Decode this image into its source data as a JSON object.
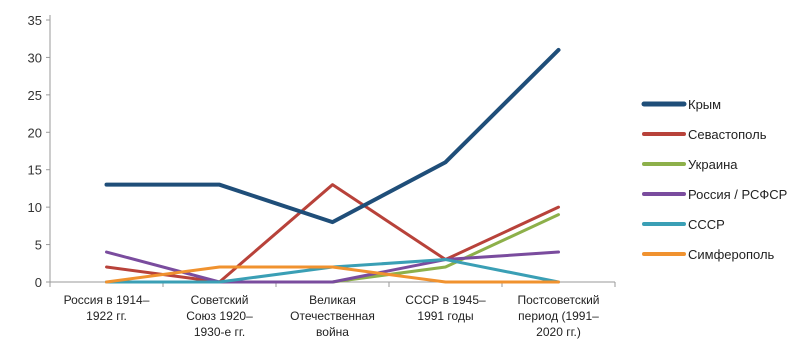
{
  "chart_data": {
    "type": "line",
    "categories": [
      [
        "Россия в 1914–",
        "1922 гг."
      ],
      [
        "Советский",
        "Союз 1920–",
        "1930-е гг."
      ],
      [
        "Великая",
        "Отечественная",
        "война"
      ],
      [
        "СССР в 1945–",
        "1991 годы"
      ],
      [
        "Постсоветский",
        "период (1991–",
        "2020 гг.)"
      ]
    ],
    "ylim": [
      0,
      35
    ],
    "yticks": [
      0,
      5,
      10,
      15,
      20,
      25,
      30,
      35
    ],
    "grid": false,
    "legend_position": "right",
    "series": [
      {
        "name": "Крым",
        "color": "#1F4E79",
        "width": 4,
        "values": [
          13,
          13,
          8,
          16,
          31
        ]
      },
      {
        "name": "Севастополь",
        "color": "#B8423A",
        "width": 3,
        "values": [
          2,
          0,
          13,
          3,
          10
        ]
      },
      {
        "name": "Украина",
        "color": "#8DB04A",
        "width": 3,
        "values": [
          0,
          0,
          0,
          2,
          9
        ]
      },
      {
        "name": "Россия / РСФСР",
        "color": "#7A4C9E",
        "width": 3,
        "values": [
          4,
          0,
          0,
          3,
          4
        ]
      },
      {
        "name": "СССР",
        "color": "#3A9FB5",
        "width": 3,
        "values": [
          0,
          0,
          2,
          3,
          0
        ]
      },
      {
        "name": "Симферополь",
        "color": "#F0922F",
        "width": 3,
        "values": [
          0,
          2,
          2,
          0,
          0
        ]
      }
    ]
  }
}
